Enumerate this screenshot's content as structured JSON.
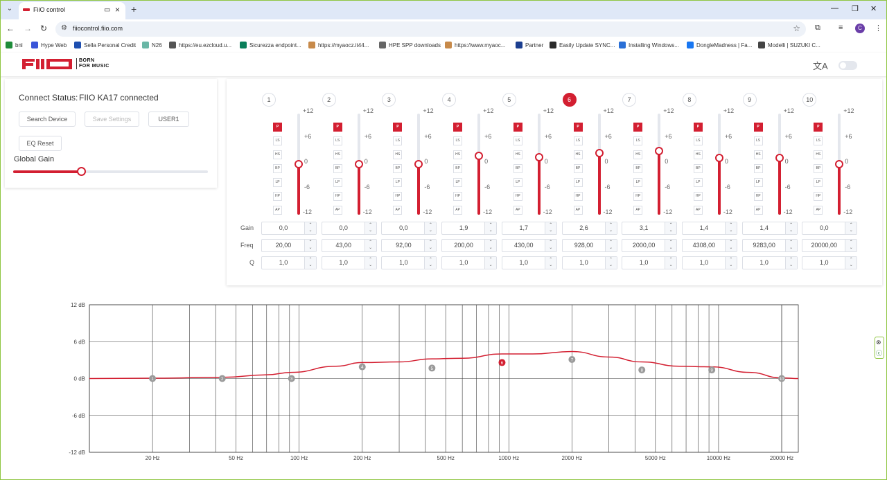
{
  "browser": {
    "tab_title": "FiiO control",
    "url": "fiiocontrol.fiio.com",
    "profile_initial": "C",
    "bookmarks": [
      {
        "label": "bnl",
        "color": "#1e8c3a"
      },
      {
        "label": "Hype Web",
        "color": "#3a55d8"
      },
      {
        "label": "Sella Personal Credit",
        "color": "#1e4fb0"
      },
      {
        "label": "N26",
        "color": "#6ab7a6"
      },
      {
        "label": "https://eu.ezcloud.u...",
        "color": "#555555"
      },
      {
        "label": "Sicurezza endpoint...",
        "color": "#0a7f5a"
      },
      {
        "label": "https://myaocz.it44...",
        "color": "#c78a4a"
      },
      {
        "label": "HPE SPP downloads",
        "color": "#666666"
      },
      {
        "label": "https://www.myaoc...",
        "color": "#c78a4a"
      },
      {
        "label": "Partner",
        "color": "#1b3e8f"
      },
      {
        "label": "Easily Update SYNC...",
        "color": "#2a2a2a"
      },
      {
        "label": "Installing Windows...",
        "color": "#2a6fd6"
      },
      {
        "label": "DongleMadness | Fa...",
        "color": "#1877f2"
      },
      {
        "label": "Modelli | SUZUKI C...",
        "color": "#444444"
      }
    ]
  },
  "header": {
    "brand": "FIIO",
    "tagline_line1": "BORN",
    "tagline_line2": "FOR MUSIC"
  },
  "connection": {
    "label": "Connect Status:",
    "value": "FIIO KA17 connected",
    "search_button": "Search Device",
    "save_button": "Save Settings",
    "preset_button": "USER1",
    "reset_button": "EQ Reset",
    "global_gain_label": "Global Gain",
    "global_gain_fraction": 0.35
  },
  "eq": {
    "active_band": 6,
    "filter_types": [
      "P",
      "LS",
      "HS",
      "BP",
      "LP",
      "HP",
      "AP"
    ],
    "slider_ticks": [
      "+12",
      "+6",
      "0",
      "-6",
      "-12"
    ],
    "row_labels": {
      "gain": "Gain",
      "freq": "Freq",
      "q": "Q"
    },
    "bands": [
      {
        "num": "1",
        "gain": "0,0",
        "freq": "20,00",
        "q": "1,0",
        "gain_value": 0.0,
        "type": "P"
      },
      {
        "num": "2",
        "gain": "0,0",
        "freq": "43,00",
        "q": "1,0",
        "gain_value": 0.0,
        "type": "P"
      },
      {
        "num": "3",
        "gain": "0,0",
        "freq": "92,00",
        "q": "1,0",
        "gain_value": 0.0,
        "type": "P"
      },
      {
        "num": "4",
        "gain": "1,9",
        "freq": "200,00",
        "q": "1,0",
        "gain_value": 1.9,
        "type": "P"
      },
      {
        "num": "5",
        "gain": "1,7",
        "freq": "430,00",
        "q": "1,0",
        "gain_value": 1.7,
        "type": "P"
      },
      {
        "num": "6",
        "gain": "2,6",
        "freq": "928,00",
        "q": "1,0",
        "gain_value": 2.6,
        "type": "P"
      },
      {
        "num": "7",
        "gain": "3,1",
        "freq": "2000,00",
        "q": "1,0",
        "gain_value": 3.1,
        "type": "P"
      },
      {
        "num": "8",
        "gain": "1,4",
        "freq": "4308,00",
        "q": "1,0",
        "gain_value": 1.4,
        "type": "P"
      },
      {
        "num": "9",
        "gain": "1,4",
        "freq": "9283,00",
        "q": "1,0",
        "gain_value": 1.4,
        "type": "P"
      },
      {
        "num": "10",
        "gain": "0,0",
        "freq": "20000,00",
        "q": "1,0",
        "gain_value": 0.0,
        "type": "P"
      }
    ]
  },
  "chart_data": {
    "type": "line",
    "xscale": "log",
    "xlim": [
      10,
      24000
    ],
    "ylim": [
      -12,
      12
    ],
    "ytick_labels": [
      "12 dB",
      "6 dB",
      "0 dB",
      "-6 dB",
      "-12 dB"
    ],
    "yticks": [
      12,
      6,
      0,
      -6,
      -12
    ],
    "xtick_labels": [
      "20 Hz",
      "50 Hz",
      "100 Hz",
      "200 Hz",
      "500 Hz",
      "1000 Hz",
      "2000 Hz",
      "5000 Hz",
      "10000 Hz",
      "20000 Hz"
    ],
    "xticks": [
      20,
      50,
      100,
      200,
      500,
      1000,
      2000,
      5000,
      10000,
      20000
    ],
    "grid": true,
    "curve_color": "#d31f31",
    "curve": {
      "x": [
        10,
        20,
        43,
        70,
        92,
        150,
        200,
        300,
        430,
        600,
        928,
        1300,
        2000,
        3000,
        4308,
        6500,
        9283,
        14000,
        20000,
        24000
      ],
      "y": [
        0,
        0.05,
        0.2,
        0.6,
        1.0,
        2.0,
        2.6,
        2.7,
        3.2,
        3.3,
        4.0,
        4.0,
        4.4,
        3.5,
        2.7,
        2.0,
        1.9,
        1.0,
        0.1,
        0.0
      ]
    },
    "points": [
      {
        "label": "1",
        "x": 20,
        "y": 0.0
      },
      {
        "label": "2",
        "x": 43,
        "y": 0.0
      },
      {
        "label": "3",
        "x": 92,
        "y": 0.0
      },
      {
        "label": "4",
        "x": 200,
        "y": 1.9
      },
      {
        "label": "5",
        "x": 430,
        "y": 1.7
      },
      {
        "label": "6",
        "x": 928,
        "y": 2.6
      },
      {
        "label": "7",
        "x": 2000,
        "y": 3.1
      },
      {
        "label": "8",
        "x": 4308,
        "y": 1.4
      },
      {
        "label": "9",
        "x": 9283,
        "y": 1.4
      },
      {
        "label": "10",
        "x": 20000,
        "y": 0.0
      }
    ]
  }
}
